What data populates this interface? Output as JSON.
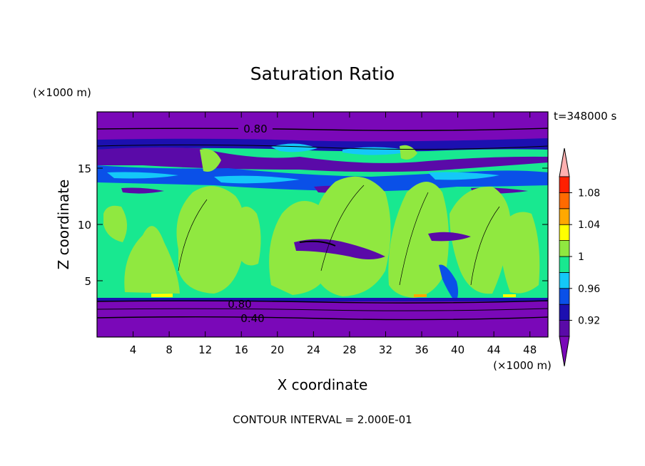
{
  "chart_data": {
    "type": "heatmap",
    "title": "Saturation Ratio",
    "xlabel": "X coordinate",
    "ylabel": "Z coordinate",
    "x_unit": "(×1000 m)",
    "y_unit": "(×1000 m)",
    "time_label": "t=348000 s",
    "footer": "CONTOUR INTERVAL = 2.000E-01",
    "xlim": [
      0,
      50
    ],
    "ylim": [
      0,
      20
    ],
    "x_ticks": [
      4,
      8,
      12,
      16,
      20,
      24,
      28,
      32,
      36,
      40,
      44,
      48
    ],
    "y_ticks": [
      5,
      10,
      15
    ],
    "contour_labels": [
      "0.80",
      "0.80",
      "0.40"
    ],
    "colorbar": {
      "levels": [
        0.9,
        0.92,
        0.94,
        0.96,
        0.98,
        1.0,
        1.02,
        1.04,
        1.06,
        1.08,
        1.1
      ],
      "colors": [
        "#5a0aa8",
        "#1c10b0",
        "#0a50e8",
        "#14c8f8",
        "#18e890",
        "#90e840",
        "#ffff00",
        "#ffa800",
        "#ff6a00",
        "#ff2000"
      ],
      "under_color": "#7a08b8",
      "over_color": "#ffb0b0",
      "tick_labels": [
        "0.92",
        "0.96",
        "1",
        "1.04",
        "1.08"
      ]
    }
  }
}
